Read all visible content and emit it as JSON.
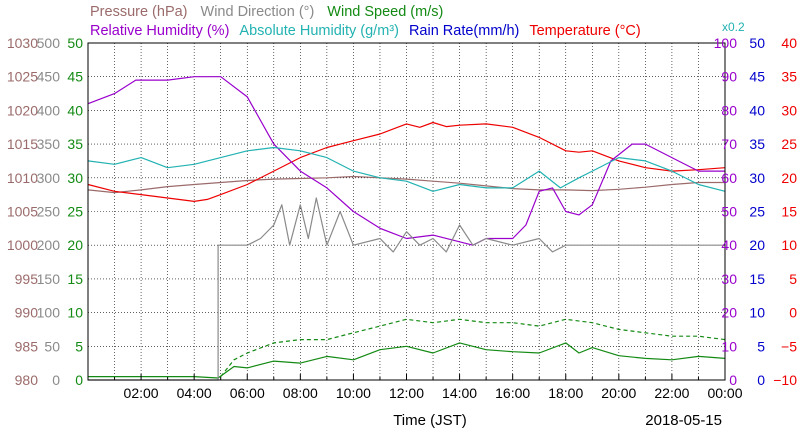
{
  "chart_data": {
    "type": "line",
    "xlabel": "Time (JST)",
    "date": "2018-05-15",
    "x_ticks": [
      "02:00",
      "04:00",
      "06:00",
      "08:00",
      "10:00",
      "12:00",
      "14:00",
      "16:00",
      "18:00",
      "20:00",
      "22:00",
      "00:00"
    ],
    "xlim_hours": [
      0,
      24
    ],
    "grid": true,
    "legend": [
      {
        "label": "Pressure (hPa)",
        "color": "#9b6b6b",
        "row": "top"
      },
      {
        "label": "Wind Direction (°)",
        "color": "#8a8a8a",
        "row": "top"
      },
      {
        "label": "Wind Speed (m/s)",
        "color": "#138a13",
        "row": "top"
      },
      {
        "label": "Relative Humidity (%)",
        "color": "#9900cc",
        "row": "bottom"
      },
      {
        "label": "Absolute Humidity (g/m³)",
        "color": "#22b2b2",
        "row": "bottom"
      },
      {
        "label": "Rain Rate(mm/h)",
        "color": "#0000cc",
        "row": "bottom"
      },
      {
        "label": "Temperature (°C)",
        "color": "#ee0000",
        "row": "bottom"
      }
    ],
    "abs_humidity_scale_note": "x0.2",
    "axes": [
      {
        "name": "Pressure (hPa)",
        "side": "left",
        "color": "#9b6b6b",
        "ylim": [
          980,
          1030
        ],
        "ticks": [
          "1030",
          "1025",
          "1020",
          "1015",
          "1010",
          "1005",
          "1000",
          "995",
          "990",
          "985",
          "980"
        ]
      },
      {
        "name": "Wind Direction (°)",
        "side": "left",
        "color": "#8a8a8a",
        "ylim": [
          0,
          500
        ],
        "ticks": [
          "500",
          "450",
          "400",
          "350",
          "300",
          "250",
          "200",
          "150",
          "100",
          "50",
          "0"
        ]
      },
      {
        "name": "Wind Speed (m/s)",
        "side": "left",
        "color": "#138a13",
        "ylim": [
          0,
          50
        ],
        "ticks": [
          "50",
          "45",
          "40",
          "35",
          "30",
          "25",
          "20",
          "15",
          "10",
          "5",
          "0"
        ]
      },
      {
        "name": "Relative Humidity (%)",
        "side": "right",
        "color": "#9900cc",
        "ylim": [
          0,
          100
        ],
        "ticks": [
          "100",
          "90",
          "80",
          "70",
          "60",
          "50",
          "40",
          "30",
          "20",
          "10",
          "0"
        ]
      },
      {
        "name": "Rain Rate(mm/h)",
        "side": "right",
        "color": "#0000cc",
        "ylim": [
          0,
          50
        ],
        "ticks": [
          "50",
          "45",
          "40",
          "35",
          "30",
          "25",
          "20",
          "15",
          "10",
          "5",
          "0"
        ]
      },
      {
        "name": "Temperature (°C)",
        "side": "right",
        "color": "#ee0000",
        "ylim": [
          -10,
          40
        ],
        "ticks": [
          "40",
          "35",
          "30",
          "25",
          "20",
          "15",
          "10",
          "5",
          "0",
          "−5",
          "−10"
        ]
      }
    ],
    "series": [
      {
        "name": "Pressure (hPa)",
        "color": "#9b6b6b",
        "axis": 0,
        "points": [
          [
            0,
            1008.2
          ],
          [
            1,
            1007.8
          ],
          [
            2,
            1008.2
          ],
          [
            3,
            1008.7
          ],
          [
            4,
            1009.0
          ],
          [
            5,
            1009.3
          ],
          [
            6,
            1009.6
          ],
          [
            7,
            1009.8
          ],
          [
            8,
            1009.9
          ],
          [
            9,
            1010.0
          ],
          [
            10,
            1010.2
          ],
          [
            11,
            1010.0
          ],
          [
            12,
            1009.8
          ],
          [
            13,
            1009.5
          ],
          [
            14,
            1009.2
          ],
          [
            15,
            1008.8
          ],
          [
            16,
            1008.4
          ],
          [
            17,
            1008.2
          ],
          [
            18,
            1008.2
          ],
          [
            19,
            1008.1
          ],
          [
            20,
            1008.3
          ],
          [
            21,
            1008.6
          ],
          [
            22,
            1009.0
          ],
          [
            23,
            1009.3
          ],
          [
            24,
            1009.3
          ]
        ]
      },
      {
        "name": "Temperature (°C)",
        "color": "#ee0000",
        "axis": 5,
        "points": [
          [
            0,
            19.0
          ],
          [
            1,
            18.0
          ],
          [
            2,
            17.5
          ],
          [
            3,
            17.0
          ],
          [
            4,
            16.5
          ],
          [
            4.5,
            16.8
          ],
          [
            5,
            17.5
          ],
          [
            6,
            19.0
          ],
          [
            7,
            21.0
          ],
          [
            8,
            23.0
          ],
          [
            9,
            24.5
          ],
          [
            10,
            25.5
          ],
          [
            11,
            26.5
          ],
          [
            12,
            28.0
          ],
          [
            12.5,
            27.5
          ],
          [
            13,
            28.2
          ],
          [
            13.5,
            27.6
          ],
          [
            14,
            27.8
          ],
          [
            15,
            28.0
          ],
          [
            16,
            27.5
          ],
          [
            17,
            26.0
          ],
          [
            18,
            24.0
          ],
          [
            18.5,
            23.8
          ],
          [
            19,
            24.0
          ],
          [
            20,
            22.5
          ],
          [
            21,
            21.5
          ],
          [
            22,
            21.0
          ],
          [
            23,
            21.2
          ],
          [
            24,
            21.5
          ]
        ]
      },
      {
        "name": "Relative Humidity (%)",
        "color": "#9900cc",
        "axis": 3,
        "points": [
          [
            0,
            82
          ],
          [
            1,
            85
          ],
          [
            1.8,
            89
          ],
          [
            3,
            89
          ],
          [
            4,
            90
          ],
          [
            5,
            90
          ],
          [
            6,
            84
          ],
          [
            7,
            70
          ],
          [
            8,
            62
          ],
          [
            9,
            57
          ],
          [
            10,
            50
          ],
          [
            11,
            45
          ],
          [
            12,
            42
          ],
          [
            13,
            43
          ],
          [
            14,
            41
          ],
          [
            14.5,
            40
          ],
          [
            15,
            42
          ],
          [
            16,
            42
          ],
          [
            16.5,
            46
          ],
          [
            17,
            56
          ],
          [
            17.5,
            57
          ],
          [
            18,
            50
          ],
          [
            18.5,
            49
          ],
          [
            19,
            52
          ],
          [
            19.7,
            65
          ],
          [
            20.5,
            70
          ],
          [
            21,
            70
          ],
          [
            22,
            66
          ],
          [
            23,
            62
          ],
          [
            24,
            62
          ]
        ]
      },
      {
        "name": "Absolute Humidity (g/m³)",
        "color": "#22b2b2",
        "axis": 3,
        "points": [
          [
            0,
            65
          ],
          [
            1,
            64
          ],
          [
            2,
            66
          ],
          [
            3,
            63
          ],
          [
            4,
            64
          ],
          [
            5,
            66
          ],
          [
            6,
            68
          ],
          [
            7,
            69
          ],
          [
            8,
            68
          ],
          [
            9,
            66
          ],
          [
            10,
            62
          ],
          [
            11,
            60
          ],
          [
            12,
            59
          ],
          [
            13,
            56
          ],
          [
            14,
            58
          ],
          [
            15,
            57
          ],
          [
            16,
            57
          ],
          [
            17,
            62
          ],
          [
            17.8,
            57
          ],
          [
            18.5,
            60
          ],
          [
            19,
            62
          ],
          [
            20,
            66
          ],
          [
            21,
            65
          ],
          [
            22,
            62
          ],
          [
            23,
            58
          ],
          [
            24,
            56
          ]
        ]
      },
      {
        "name": "Wind Speed (m/s)",
        "color": "#138a13",
        "axis": 2,
        "points": [
          [
            0,
            0.5
          ],
          [
            4,
            0.5
          ],
          [
            4.9,
            0.3
          ],
          [
            5.5,
            2.0
          ],
          [
            6,
            1.8
          ],
          [
            7,
            2.8
          ],
          [
            8,
            2.5
          ],
          [
            9,
            3.5
          ],
          [
            10,
            3.0
          ],
          [
            11,
            4.5
          ],
          [
            12,
            5.0
          ],
          [
            13,
            4.0
          ],
          [
            14,
            5.5
          ],
          [
            15,
            4.5
          ],
          [
            16,
            4.2
          ],
          [
            17,
            4.0
          ],
          [
            18,
            5.5
          ],
          [
            18.5,
            4.0
          ],
          [
            19,
            4.8
          ],
          [
            20,
            3.6
          ],
          [
            21,
            3.2
          ],
          [
            22,
            3.0
          ],
          [
            23,
            3.5
          ],
          [
            24,
            3.2
          ]
        ]
      },
      {
        "name": "Wind Gust (m/s)",
        "color": "#138a13",
        "axis": 2,
        "dashed": true,
        "points": [
          [
            5,
            0.5
          ],
          [
            5.5,
            3.0
          ],
          [
            6,
            4.0
          ],
          [
            7,
            5.5
          ],
          [
            8,
            6.0
          ],
          [
            9,
            6.0
          ],
          [
            10,
            7.0
          ],
          [
            11,
            8.0
          ],
          [
            12,
            9.0
          ],
          [
            13,
            8.5
          ],
          [
            14,
            9.0
          ],
          [
            15,
            8.5
          ],
          [
            16,
            8.5
          ],
          [
            17,
            8.0
          ],
          [
            18,
            9.0
          ],
          [
            19,
            8.5
          ],
          [
            20,
            7.5
          ],
          [
            21,
            7.0
          ],
          [
            22,
            6.5
          ],
          [
            23,
            6.5
          ],
          [
            24,
            6.0
          ]
        ]
      },
      {
        "name": "Wind Direction (°)",
        "color": "#8a8a8a",
        "axis": 1,
        "step": true,
        "points": [
          [
            0,
            0
          ],
          [
            4.9,
            0
          ],
          [
            4.9,
            200
          ],
          [
            5.2,
            200
          ],
          [
            6,
            200
          ],
          [
            6.5,
            210
          ],
          [
            7,
            230
          ],
          [
            7.3,
            260
          ],
          [
            7.6,
            200
          ],
          [
            8,
            260
          ],
          [
            8.3,
            210
          ],
          [
            8.6,
            270
          ],
          [
            9,
            200
          ],
          [
            9.5,
            250
          ],
          [
            10,
            200
          ],
          [
            11,
            210
          ],
          [
            11.5,
            190
          ],
          [
            12,
            220
          ],
          [
            12.5,
            200
          ],
          [
            13,
            210
          ],
          [
            13.5,
            190
          ],
          [
            14,
            230
          ],
          [
            14.5,
            200
          ],
          [
            15,
            210
          ],
          [
            16,
            200
          ],
          [
            17,
            210
          ],
          [
            17.5,
            190
          ],
          [
            18,
            200
          ],
          [
            19,
            200
          ],
          [
            20,
            200
          ],
          [
            21,
            200
          ],
          [
            22,
            200
          ],
          [
            23,
            200
          ],
          [
            24,
            200
          ]
        ]
      }
    ]
  }
}
